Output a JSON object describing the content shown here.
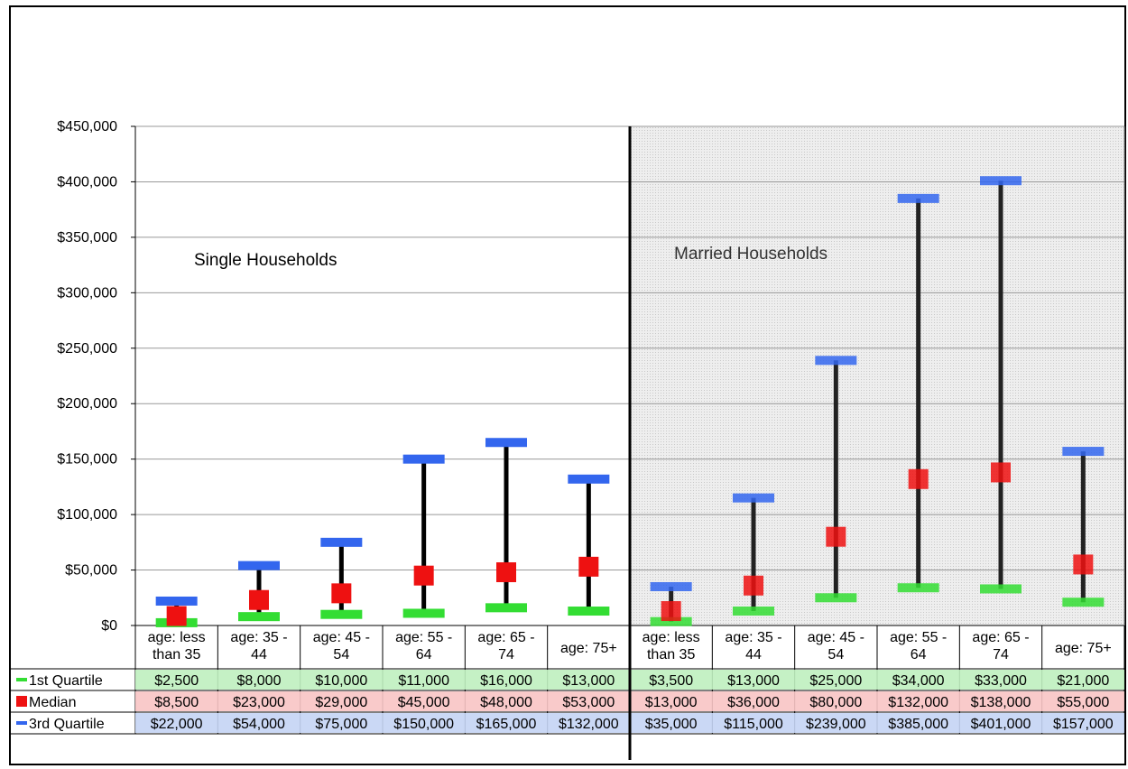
{
  "chart_data": {
    "type": "table",
    "chart_kind": "high-low-median",
    "categories": [
      "age: less than 35",
      "age: 35 - 44",
      "age: 45 - 54",
      "age: 55 - 64",
      "age: 65 - 74",
      "age: 75+",
      "age: less than 35",
      "age: 35 - 44",
      "age: 45 - 54",
      "age: 55 - 64",
      "age: 65 - 74",
      "age: 75+"
    ],
    "category_lines": [
      [
        "age: less",
        "than 35"
      ],
      [
        "age: 35 -",
        "44"
      ],
      [
        "age: 45 -",
        "54"
      ],
      [
        "age: 55 -",
        "64"
      ],
      [
        "age: 65 -",
        "74"
      ],
      [
        "age: 75+"
      ],
      [
        "age: less",
        "than 35"
      ],
      [
        "age: 35 -",
        "44"
      ],
      [
        "age: 45 -",
        "54"
      ],
      [
        "age: 55 -",
        "64"
      ],
      [
        "age: 65 -",
        "74"
      ],
      [
        "age: 75+"
      ]
    ],
    "groups": [
      {
        "label": "Single Households",
        "shaded": false
      },
      {
        "label": "Married Households",
        "shaded": true
      }
    ],
    "series": [
      {
        "name": "1st Quartile",
        "color": "#33dd33",
        "values": [
          2500,
          8000,
          10000,
          11000,
          16000,
          13000,
          3500,
          13000,
          25000,
          34000,
          33000,
          21000
        ],
        "labels": [
          "$2,500",
          "$8,000",
          "$10,000",
          "$11,000",
          "$16,000",
          "$13,000",
          "$3,500",
          "$13,000",
          "$25,000",
          "$34,000",
          "$33,000",
          "$21,000"
        ]
      },
      {
        "name": "Median",
        "color": "#ee1111",
        "values": [
          8500,
          23000,
          29000,
          45000,
          48000,
          53000,
          13000,
          36000,
          80000,
          132000,
          138000,
          55000
        ],
        "labels": [
          "$8,500",
          "$23,000",
          "$29,000",
          "$45,000",
          "$48,000",
          "$53,000",
          "$13,000",
          "$36,000",
          "$80,000",
          "$132,000",
          "$138,000",
          "$55,000"
        ]
      },
      {
        "name": "3rd Quartile",
        "color": "#3366ee",
        "values": [
          22000,
          54000,
          75000,
          150000,
          165000,
          132000,
          35000,
          115000,
          239000,
          385000,
          401000,
          157000
        ],
        "labels": [
          "$22,000",
          "$54,000",
          "$75,000",
          "$150,000",
          "$165,000",
          "$132,000",
          "$35,000",
          "$115,000",
          "$239,000",
          "$385,000",
          "$401,000",
          "$157,000"
        ]
      }
    ],
    "ylim": [
      0,
      450000
    ],
    "yticks": [
      0,
      50000,
      100000,
      150000,
      200000,
      250000,
      300000,
      350000,
      400000,
      450000
    ],
    "ytick_labels": [
      "$0",
      "$50,000",
      "$100,000",
      "$150,000",
      "$200,000",
      "$250,000",
      "$300,000",
      "$350,000",
      "$400,000",
      "$450,000"
    ],
    "grid": true,
    "legend": "data-table-left"
  }
}
